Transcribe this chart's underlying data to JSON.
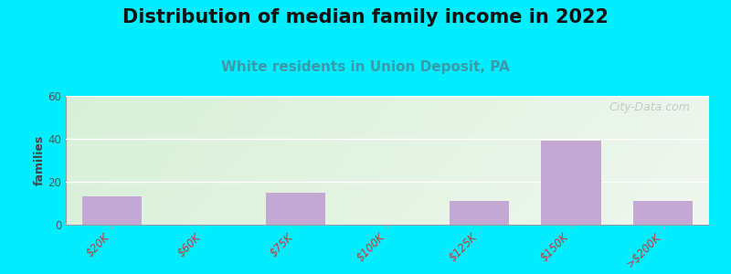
{
  "title": "Distribution of median family income in 2022",
  "subtitle": "White residents in Union Deposit, PA",
  "categories": [
    "$20K",
    "$60K",
    "$75K",
    "$100K",
    "$125K",
    "$150K",
    ">$200K"
  ],
  "values": [
    13,
    0,
    15,
    0,
    11,
    39,
    11
  ],
  "bar_color": "#c4a8d4",
  "background_outer": "#00eeff",
  "ylabel": "families",
  "ylim": [
    0,
    60
  ],
  "yticks": [
    0,
    20,
    40,
    60
  ],
  "grid_color": "#ffffff",
  "title_fontsize": 15,
  "subtitle_fontsize": 11,
  "title_color": "#111111",
  "subtitle_color": "#3a9aaa",
  "watermark": "City-Data.com",
  "bar_width": 0.65,
  "tick_label_color": "#cc3333",
  "ytick_color": "#555555",
  "ylabel_color": "#444444"
}
